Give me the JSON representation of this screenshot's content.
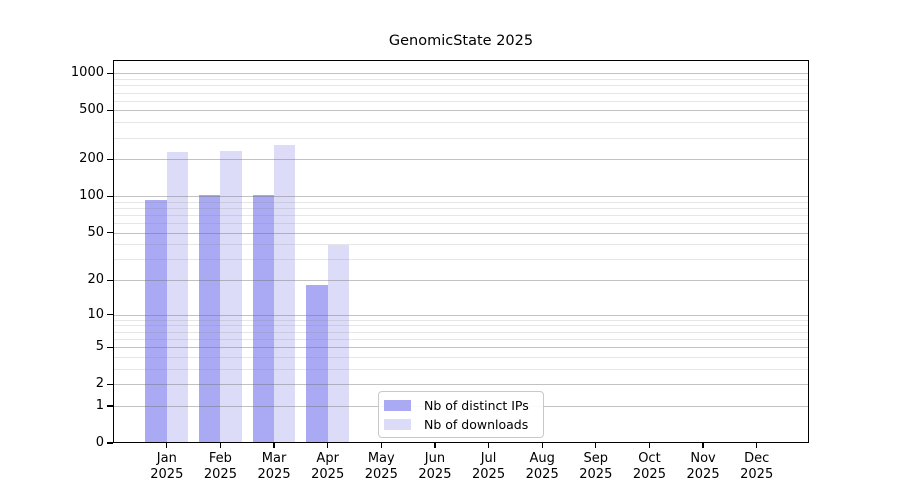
{
  "title": "GenomicState 2025",
  "chart_data": {
    "type": "bar",
    "title": "GenomicState 2025",
    "categories": [
      "Jan 2025",
      "Feb 2025",
      "Mar 2025",
      "Apr 2025",
      "May 2025",
      "Jun 2025",
      "Jul 2025",
      "Aug 2025",
      "Sep 2025",
      "Oct 2025",
      "Nov 2025",
      "Dec 2025"
    ],
    "series": [
      {
        "name": "Nb of distinct IPs",
        "color": "#a9a9f4",
        "values": [
          92,
          100,
          100,
          18,
          null,
          null,
          null,
          null,
          null,
          null,
          null,
          null
        ]
      },
      {
        "name": "Nb of downloads",
        "color": "#dcdcf8",
        "values": [
          226,
          231,
          256,
          39,
          null,
          null,
          null,
          null,
          null,
          null,
          null,
          null
        ]
      }
    ],
    "xlabel": "",
    "ylabel": "",
    "y_scale": "log10(1+x)",
    "y_ticks": [
      0,
      1,
      2,
      5,
      10,
      20,
      50,
      100,
      200,
      500,
      1000
    ],
    "y_minor_gridlines": [
      3,
      4,
      6,
      7,
      8,
      9,
      30,
      40,
      60,
      70,
      80,
      90,
      300,
      400,
      600,
      700,
      800,
      900
    ],
    "ylim": [
      0,
      1290
    ],
    "grid": "on",
    "grid_over_bars": true,
    "legend_position": "bottom-center-inside",
    "axis_color": "#000000",
    "major_grid_color": "#c4c4c4",
    "minor_grid_color": "#ebebeb",
    "legend_border_color": "#c9c9c9"
  }
}
